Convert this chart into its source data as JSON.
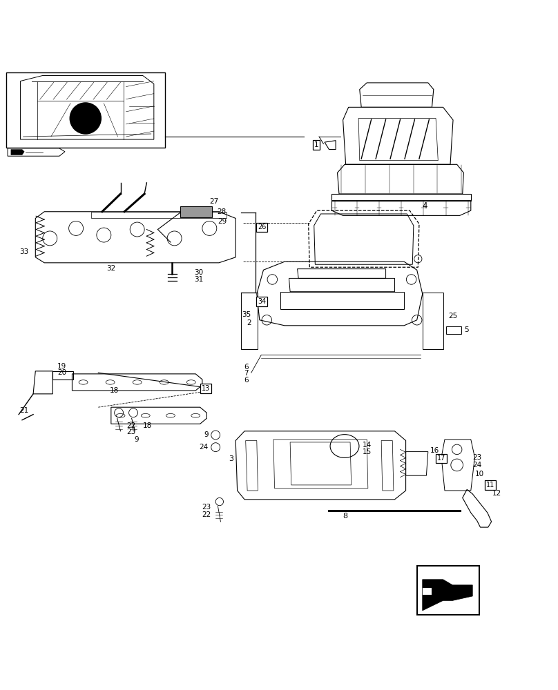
{
  "bg_color": "#ffffff",
  "line_color": "#000000",
  "label_color": "#000000",
  "fig_width": 8.08,
  "fig_height": 10.0,
  "dpi": 100
}
